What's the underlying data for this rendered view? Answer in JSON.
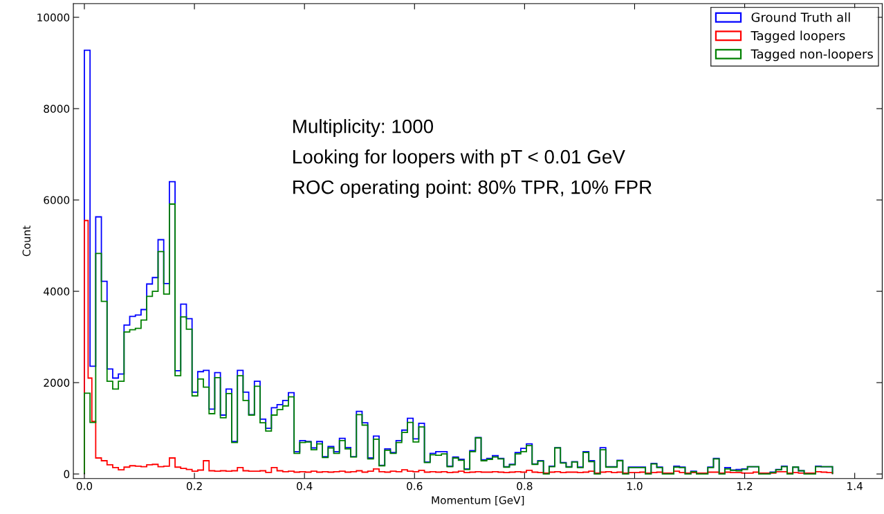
{
  "chart_data": {
    "type": "histogram",
    "xlabel": "Momentum [GeV]",
    "ylabel": "Count",
    "bins": [
      0,
      0.0103,
      0.0206,
      0.0309,
      0.0412,
      0.0515,
      0.0618,
      0.0721,
      0.0824,
      0.0927,
      0.103,
      0.1133,
      0.1236,
      0.1339,
      0.1442,
      0.1545,
      0.1648,
      0.1751,
      0.1854,
      0.1957,
      0.206,
      0.2163,
      0.2266,
      0.2369,
      0.2472,
      0.2575,
      0.2678,
      0.2781,
      0.2884,
      0.2987,
      0.309,
      0.3193,
      0.3296,
      0.3399,
      0.3502,
      0.3605,
      0.3708,
      0.3811,
      0.3914,
      0.4017,
      0.412,
      0.4223,
      0.4326,
      0.4429,
      0.4532,
      0.4635,
      0.4738,
      0.4841,
      0.4944,
      0.5047,
      0.515,
      0.5253,
      0.5356,
      0.5459,
      0.5562,
      0.5665,
      0.5768,
      0.5871,
      0.5974,
      0.6077,
      0.618,
      0.6283,
      0.6386,
      0.6489,
      0.6592,
      0.6695,
      0.6798,
      0.6901,
      0.7004,
      0.7107,
      0.721,
      0.7313,
      0.7416,
      0.7519,
      0.7622,
      0.7725,
      0.7828,
      0.7931,
      0.8034,
      0.8137,
      0.824,
      0.8343,
      0.8446,
      0.8549,
      0.8652,
      0.8755,
      0.8858,
      0.8961,
      0.9064,
      0.9167,
      0.927,
      0.9373,
      0.9476,
      0.9579,
      0.9682,
      0.9785,
      0.9888,
      0.9991,
      1.0094,
      1.0197,
      1.03,
      1.0403,
      1.0506,
      1.0609,
      1.0712,
      1.0815,
      1.0918,
      1.1021,
      1.1124,
      1.1227,
      1.133,
      1.1433,
      1.1536,
      1.1639,
      1.1742,
      1.1845,
      1.1948,
      1.2051,
      1.2154,
      1.2257,
      1.236,
      1.2463,
      1.2566,
      1.2669,
      1.2772,
      1.2875,
      1.2978,
      1.3081,
      1.3184,
      1.3287,
      1.339,
      1.3493,
      1.3596
    ],
    "series": [
      {
        "name": "Ground Truth all",
        "color": "#0000ff",
        "values": [
          9280,
          2360,
          5630,
          4220,
          2300,
          2100,
          2190,
          3260,
          3450,
          3480,
          3600,
          4160,
          4300,
          5130,
          4170,
          6400,
          2260,
          3720,
          3400,
          1790,
          2240,
          2270,
          1420,
          2220,
          1290,
          1860,
          710,
          2270,
          1790,
          1300,
          2030,
          1200,
          1000,
          1450,
          1520,
          1610,
          1780,
          490,
          730,
          710,
          570,
          710,
          380,
          600,
          490,
          780,
          580,
          380,
          1370,
          1120,
          350,
          830,
          190,
          550,
          470,
          730,
          960,
          1220,
          770,
          1110,
          260,
          450,
          490,
          490,
          170,
          370,
          320,
          110,
          510,
          800,
          310,
          340,
          400,
          340,
          160,
          210,
          470,
          560,
          660,
          220,
          290,
          0,
          170,
          575,
          250,
          160,
          270,
          150,
          490,
          290,
          0,
          575,
          160,
          160,
          300,
          0,
          150,
          150,
          150,
          0,
          230,
          150,
          0,
          0,
          170,
          150,
          0,
          60,
          0,
          0,
          150,
          340,
          0,
          140,
          85,
          100,
          110,
          160,
          160,
          0,
          0,
          40,
          100,
          170,
          0,
          150,
          70,
          0,
          0,
          170,
          160,
          160
        ]
      },
      {
        "name": "Tagged loopers",
        "color": "#ff0000",
        "bins": [
          0,
          0.0068,
          0.0136,
          0.0206,
          0.0309,
          0.0412,
          0.0515,
          0.0618,
          0.0721,
          0.0824,
          0.0927,
          0.103,
          0.1133,
          0.1236,
          0.1339,
          0.1442,
          0.1545,
          0.1648,
          0.1751,
          0.1854,
          0.1957,
          0.206,
          0.2163,
          0.2266,
          0.2369,
          0.2472,
          0.2575,
          0.2678,
          0.2781,
          0.2884,
          0.2987,
          0.309,
          0.3193,
          0.3296,
          0.3399,
          0.3502,
          0.3605,
          0.3708,
          0.3811,
          0.3914,
          0.4017,
          0.412,
          0.4223,
          0.4326,
          0.4429,
          0.4532,
          0.4635,
          0.4738,
          0.4841,
          0.4944,
          0.5047,
          0.515,
          0.5253,
          0.5356,
          0.5459,
          0.5562,
          0.5665,
          0.5768,
          0.5871,
          0.5974,
          0.6077,
          0.618,
          0.6283,
          0.6386,
          0.6489,
          0.6592,
          0.6695,
          0.6798,
          0.6901,
          0.7004,
          0.7107,
          0.721,
          0.7313,
          0.7416,
          0.7519,
          0.7622,
          0.7725,
          0.7828,
          0.7931,
          0.8034,
          0.8137,
          0.824,
          0.8343,
          0.8446,
          0.8549,
          0.8652,
          0.8755,
          0.8858,
          0.8961,
          0.9064,
          0.9167,
          0.927,
          0.9373,
          0.9476,
          0.9579,
          0.9682,
          0.9785,
          0.9888,
          0.9991,
          1.0094,
          1.0197,
          1.03,
          1.0403,
          1.0506,
          1.0609,
          1.0712,
          1.0815,
          1.0918,
          1.1021,
          1.1124,
          1.1227,
          1.133,
          1.1433,
          1.1536,
          1.1639,
          1.1742,
          1.1845,
          1.1948,
          1.2051,
          1.2154,
          1.2257,
          1.236,
          1.2463,
          1.2566,
          1.2669,
          1.2772,
          1.2875,
          1.2978,
          1.3081,
          1.3184,
          1.3287,
          1.339,
          1.3493,
          1.3596
        ],
        "values": [
          5550,
          2100,
          1150,
          350,
          290,
          200,
          140,
          90,
          150,
          180,
          170,
          160,
          200,
          210,
          160,
          170,
          350,
          150,
          120,
          100,
          60,
          85,
          290,
          70,
          60,
          70,
          60,
          70,
          140,
          70,
          60,
          60,
          70,
          35,
          140,
          70,
          50,
          60,
          40,
          50,
          40,
          60,
          40,
          50,
          40,
          50,
          60,
          40,
          50,
          70,
          40,
          60,
          110,
          50,
          40,
          60,
          50,
          90,
          60,
          50,
          80,
          40,
          50,
          40,
          50,
          30,
          40,
          60,
          30,
          40,
          50,
          40,
          40,
          50,
          40,
          30,
          40,
          50,
          40,
          80,
          40,
          30,
          20,
          40,
          50,
          30,
          40,
          40,
          30,
          40,
          60,
          20,
          40,
          50,
          30,
          40,
          20,
          30,
          30,
          40,
          20,
          30,
          40,
          20,
          20,
          60,
          30,
          20,
          30,
          20,
          20,
          40,
          40,
          20,
          40,
          30,
          30,
          20,
          20,
          40,
          20,
          20,
          20,
          50,
          50,
          20,
          30,
          20,
          20,
          20,
          50,
          40,
          30
        ]
      },
      {
        "name": "Tagged non-loopers",
        "color": "#008000",
        "values": [
          1770,
          1130,
          4830,
          3780,
          2030,
          1860,
          2030,
          3110,
          3160,
          3190,
          3370,
          3890,
          4000,
          4870,
          3940,
          5910,
          2150,
          3440,
          3170,
          1710,
          2080,
          1900,
          1320,
          2110,
          1230,
          1760,
          690,
          2150,
          1610,
          1290,
          1920,
          1120,
          940,
          1290,
          1410,
          1490,
          1690,
          450,
          690,
          700,
          530,
          660,
          360,
          570,
          450,
          730,
          550,
          370,
          1300,
          1070,
          330,
          760,
          180,
          520,
          450,
          690,
          910,
          1130,
          700,
          1030,
          250,
          420,
          410,
          440,
          160,
          350,
          300,
          100,
          490,
          790,
          290,
          320,
          370,
          330,
          150,
          200,
          440,
          490,
          620,
          210,
          280,
          0,
          160,
          570,
          240,
          150,
          260,
          140,
          470,
          270,
          0,
          530,
          150,
          150,
          290,
          0,
          140,
          140,
          140,
          0,
          220,
          140,
          0,
          0,
          150,
          140,
          0,
          50,
          0,
          0,
          140,
          330,
          0,
          110,
          80,
          70,
          100,
          160,
          160,
          0,
          0,
          30,
          90,
          160,
          0,
          150,
          70,
          0,
          0,
          160,
          160,
          160
        ]
      }
    ],
    "xlim": [
      -0.02,
      1.45
    ],
    "ylim": [
      -100,
      10300
    ],
    "xticks": [
      {
        "value": 0,
        "label": "0.0"
      },
      {
        "value": 0.2,
        "label": "0.2"
      },
      {
        "value": 0.4,
        "label": "0.4"
      },
      {
        "value": 0.6,
        "label": "0.6"
      },
      {
        "value": 0.8,
        "label": "0.8"
      },
      {
        "value": 1.0,
        "label": "1.0"
      },
      {
        "value": 1.2,
        "label": "1.2"
      },
      {
        "value": 1.4,
        "label": "1.4"
      }
    ],
    "yticks": [
      0,
      2000,
      4000,
      6000,
      8000,
      10000
    ],
    "grid": false,
    "legend": "top right",
    "annotations": [
      "Multiplicity: 1000",
      "Looking for loopers with pT < 0.01 GeV",
      "ROC operating point: 80% TPR, 10% FPR"
    ]
  }
}
